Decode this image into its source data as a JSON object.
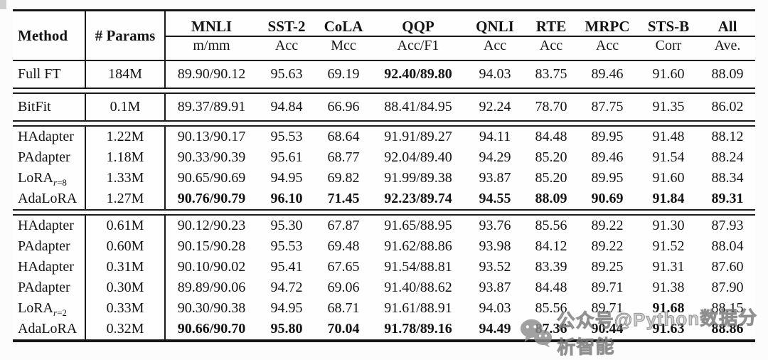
{
  "colors": {
    "rule": "#1a1a1a",
    "text": "#141414",
    "background": "#fcfcfc",
    "watermark_gray": "#8d8d8d"
  },
  "watermark": {
    "icon": "wechat-icon",
    "text": "公众号@Python数据分析智能"
  },
  "table": {
    "header": {
      "method": "Method",
      "params": "# Params",
      "metrics": [
        {
          "name": "MNLI",
          "sub": "m/mm"
        },
        {
          "name": "SST-2",
          "sub": "Acc"
        },
        {
          "name": "CoLA",
          "sub": "Mcc"
        },
        {
          "name": "QQP",
          "sub": "Acc/F1"
        },
        {
          "name": "QNLI",
          "sub": "Acc"
        },
        {
          "name": "RTE",
          "sub": "Acc"
        },
        {
          "name": "MRPC",
          "sub": "Acc"
        },
        {
          "name": "STS-B",
          "sub": "Corr"
        },
        {
          "name": "All",
          "sub": "Ave."
        }
      ]
    },
    "groups": [
      {
        "rows": [
          {
            "method": "Full FT",
            "method_sub": "",
            "params": "184M",
            "values": [
              "89.90/90.12",
              "95.63",
              "69.19",
              "92.40/89.80",
              "94.03",
              "83.75",
              "89.46",
              "91.60",
              "88.09"
            ],
            "bold": [
              3
            ]
          }
        ]
      },
      {
        "rows": [
          {
            "method": "BitFit",
            "method_sub": "",
            "params": "0.1M",
            "values": [
              "89.37/89.91",
              "94.84",
              "66.96",
              "88.41/84.95",
              "92.24",
              "78.70",
              "87.75",
              "91.35",
              "86.02"
            ],
            "bold": []
          }
        ]
      },
      {
        "rows": [
          {
            "method": "HAdapter",
            "method_sub": "",
            "params": "1.22M",
            "values": [
              "90.13/90.17",
              "95.53",
              "68.64",
              "91.91/89.27",
              "94.11",
              "84.48",
              "89.95",
              "91.48",
              "88.12"
            ],
            "bold": []
          },
          {
            "method": "PAdapter",
            "method_sub": "",
            "params": "1.18M",
            "values": [
              "90.33/90.39",
              "95.61",
              "68.77",
              "92.04/89.40",
              "94.29",
              "85.20",
              "89.46",
              "91.54",
              "88.24"
            ],
            "bold": []
          },
          {
            "method": "LoRA",
            "method_sub": "r=8",
            "params": "1.33M",
            "values": [
              "90.65/90.69",
              "94.95",
              "69.82",
              "91.99/89.38",
              "93.87",
              "85.20",
              "89.95",
              "91.60",
              "88.34"
            ],
            "bold": []
          },
          {
            "method": "AdaLoRA",
            "method_sub": "",
            "params": "1.27M",
            "values": [
              "90.76/90.79",
              "96.10",
              "71.45",
              "92.23/89.74",
              "94.55",
              "88.09",
              "90.69",
              "91.84",
              "89.31"
            ],
            "bold": [
              0,
              1,
              2,
              3,
              4,
              5,
              6,
              7,
              8
            ]
          }
        ]
      },
      {
        "rows": [
          {
            "method": "HAdapter",
            "method_sub": "",
            "params": "0.61M",
            "values": [
              "90.12/90.23",
              "95.30",
              "67.87",
              "91.65/88.95",
              "93.76",
              "85.56",
              "89.22",
              "91.30",
              "87.93"
            ],
            "bold": []
          },
          {
            "method": "PAdapter",
            "method_sub": "",
            "params": "0.60M",
            "values": [
              "90.15/90.28",
              "95.53",
              "69.48",
              "91.62/88.86",
              "93.98",
              "84.12",
              "89.22",
              "91.52",
              "88.04"
            ],
            "bold": []
          },
          {
            "method": "HAdapter",
            "method_sub": "",
            "params": "0.31M",
            "values": [
              "90.10/90.02",
              "95.41",
              "67.65",
              "91.54/88.81",
              "93.52",
              "83.39",
              "89.25",
              "91.31",
              "87.60"
            ],
            "bold": []
          },
          {
            "method": "PAdapter",
            "method_sub": "",
            "params": "0.30M",
            "values": [
              "89.89/90.06",
              "94.72",
              "69.06",
              "91.40/88.62",
              "93.87",
              "84.48",
              "89.71",
              "91.38",
              "87.90"
            ],
            "bold": []
          },
          {
            "method": "LoRA",
            "method_sub": "r=2",
            "params": "0.33M",
            "values": [
              "90.30/90.38",
              "94.95",
              "68.71",
              "91.61/88.91",
              "94.03",
              "85.56",
              "89.71",
              "91.68",
              "88.15"
            ],
            "bold": [
              7
            ]
          },
          {
            "method": "AdaLoRA",
            "method_sub": "",
            "params": "0.32M",
            "values": [
              "90.66/90.70",
              "95.80",
              "70.04",
              "91.78/89.16",
              "94.49",
              "87.36",
              "90.44",
              "91.63",
              "88.86"
            ],
            "bold": [
              0,
              1,
              2,
              3,
              4,
              5,
              6,
              7,
              8
            ]
          }
        ]
      }
    ]
  }
}
